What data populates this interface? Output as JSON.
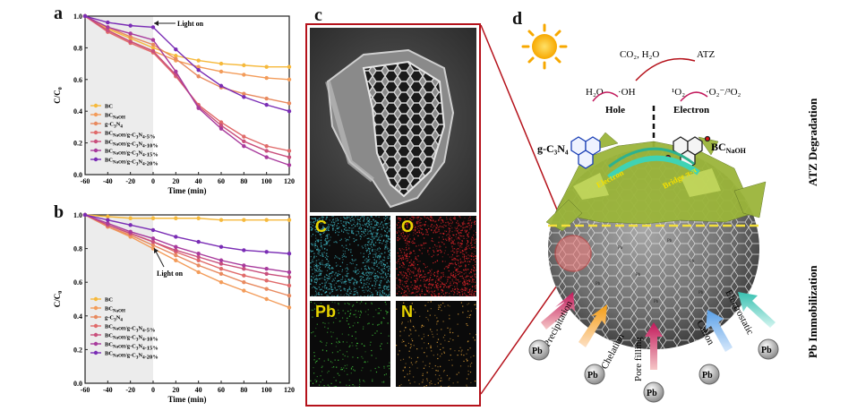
{
  "panels": {
    "a": "a",
    "b": "b",
    "c": "c",
    "d": "d"
  },
  "chart_data": [
    {
      "type": "line",
      "panel": "a",
      "xlabel": "Time (min)",
      "ylabel": "C/C0",
      "xlim": [
        -60,
        120
      ],
      "ylim": [
        0,
        1.0
      ],
      "xticks": [
        "-60",
        "-40",
        "-20",
        "0",
        "20",
        "40",
        "60",
        "80",
        "100",
        "120"
      ],
      "yticks": [
        "0.0",
        "0.2",
        "0.4",
        "0.6",
        "0.8",
        "1.0"
      ],
      "annotation": "Light on",
      "x": [
        -60,
        -40,
        -20,
        0,
        20,
        40,
        60,
        80,
        100,
        120
      ],
      "series": [
        {
          "name": "BC",
          "color": "#f6b93b",
          "values": [
            1.0,
            0.92,
            0.86,
            0.8,
            0.75,
            0.72,
            0.7,
            0.69,
            0.68,
            0.68
          ]
        },
        {
          "name": "BC_NaOH",
          "color": "#f39c5a",
          "values": [
            1.0,
            0.91,
            0.84,
            0.78,
            0.72,
            0.68,
            0.65,
            0.63,
            0.61,
            0.6
          ]
        },
        {
          "name": "g-C3N4",
          "color": "#e88a5f",
          "values": [
            1.0,
            0.93,
            0.87,
            0.82,
            0.73,
            0.62,
            0.55,
            0.51,
            0.48,
            0.45
          ]
        },
        {
          "name": "BC_NaOH/g-C3N4-5%",
          "color": "#e06a6a",
          "values": [
            1.0,
            0.9,
            0.83,
            0.77,
            0.62,
            0.44,
            0.33,
            0.24,
            0.18,
            0.15
          ]
        },
        {
          "name": "BC_NaOH/g-C3N4-10%",
          "color": "#c94f7c",
          "values": [
            1.0,
            0.91,
            0.84,
            0.78,
            0.63,
            0.43,
            0.31,
            0.21,
            0.15,
            0.11
          ]
        },
        {
          "name": "BC_NaOH/g-C3N4-15%",
          "color": "#a83a9c",
          "values": [
            1.0,
            0.93,
            0.89,
            0.85,
            0.65,
            0.42,
            0.29,
            0.18,
            0.11,
            0.06
          ]
        },
        {
          "name": "BC_NaOH/g-C3N4-20%",
          "color": "#7a2db5",
          "values": [
            1.0,
            0.96,
            0.94,
            0.93,
            0.79,
            0.66,
            0.56,
            0.49,
            0.44,
            0.4
          ]
        }
      ],
      "legend": [
        "BC",
        "BC_NaOH",
        "g-C3N4",
        "BC_NaOH/g-C3N4-5%",
        "BC_NaOH/g-C3N4-10%",
        "BC_NaOH/g-C3N4-15%",
        "BC_NaOH/g-C3N4-20%"
      ]
    },
    {
      "type": "line",
      "panel": "b",
      "xlabel": "Time (min)",
      "ylabel": "C/C0",
      "xlim": [
        -60,
        120
      ],
      "ylim": [
        0,
        1.0
      ],
      "xticks": [
        "-60",
        "-40",
        "-20",
        "0",
        "20",
        "40",
        "60",
        "80",
        "100",
        "120"
      ],
      "yticks": [
        "0.0",
        "0.2",
        "0.4",
        "0.6",
        "0.8",
        "1.0"
      ],
      "annotation": "Light on",
      "x": [
        -60,
        -40,
        -20,
        0,
        20,
        40,
        60,
        80,
        100,
        120
      ],
      "series": [
        {
          "name": "BC",
          "color": "#f6b93b",
          "values": [
            1.0,
            0.99,
            0.98,
            0.98,
            0.98,
            0.98,
            0.97,
            0.97,
            0.97,
            0.97
          ]
        },
        {
          "name": "BC_NaOH",
          "color": "#f39c5a",
          "values": [
            1.0,
            0.93,
            0.87,
            0.8,
            0.73,
            0.66,
            0.6,
            0.55,
            0.5,
            0.45
          ]
        },
        {
          "name": "g-C3N4",
          "color": "#e88a5f",
          "values": [
            1.0,
            0.93,
            0.88,
            0.82,
            0.76,
            0.7,
            0.65,
            0.6,
            0.56,
            0.52
          ]
        },
        {
          "name": "BC_NaOH/g-C3N4-5%",
          "color": "#e06a6a",
          "values": [
            1.0,
            0.94,
            0.89,
            0.84,
            0.78,
            0.73,
            0.68,
            0.64,
            0.61,
            0.58
          ]
        },
        {
          "name": "BC_NaOH/g-C3N4-10%",
          "color": "#c94f7c",
          "values": [
            1.0,
            0.94,
            0.89,
            0.84,
            0.79,
            0.75,
            0.71,
            0.68,
            0.65,
            0.63
          ]
        },
        {
          "name": "BC_NaOH/g-C3N4-15%",
          "color": "#a83a9c",
          "values": [
            1.0,
            0.95,
            0.9,
            0.86,
            0.81,
            0.77,
            0.73,
            0.7,
            0.68,
            0.66
          ]
        },
        {
          "name": "BC_NaOH/g-C3N4-20%",
          "color": "#7a2db5",
          "values": [
            1.0,
            0.97,
            0.94,
            0.91,
            0.87,
            0.84,
            0.81,
            0.79,
            0.78,
            0.77
          ]
        }
      ],
      "legend": [
        "BC",
        "BC_NaOH",
        "g-C3N4",
        "BC_NaOH/g-C3N4-5%",
        "BC_NaOH/g-C3N4-10%",
        "BC_NaOH/g-C3N4-15%",
        "BC_NaOH/g-C3N4-20%"
      ]
    }
  ],
  "eds": {
    "c": "C",
    "o": "O",
    "pb": "Pb",
    "n": "N"
  },
  "schematic": {
    "top_products_left": "CO₂, H₂O",
    "top_products_right": "ATZ",
    "h2o": "H₂O",
    "oh": "·OH",
    "singlet": "¹O₂",
    "superoxide": "·O₂⁻/³O₂",
    "hole": "Hole",
    "electron": "Electron",
    "gcn": "g-C₃N₄",
    "bc": "BC",
    "bc_sub": "NaOH",
    "electron_arrow": "Electron",
    "bridge_arrow": "Bridge π-π",
    "side_top": "ATZ Degradation",
    "side_bottom": "Pb Immobilization",
    "mechanisms": [
      "Precipitation",
      "Chelation",
      "Pore filling",
      "Cation",
      "Electrostatic"
    ],
    "pb": "Pb",
    "sphere_pb": "Pb"
  }
}
